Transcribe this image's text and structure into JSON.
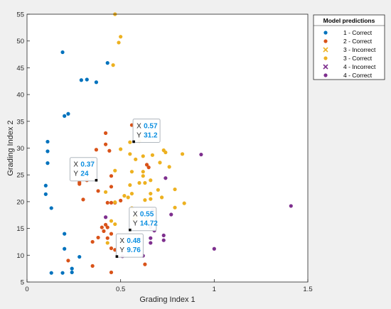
{
  "chart_data": {
    "type": "scatter",
    "xlabel": "Grading Index 1",
    "ylabel": "Grading Index 2",
    "xlim": [
      0,
      1.5
    ],
    "ylim": [
      5,
      55
    ],
    "xticks": [
      0,
      0.5,
      1,
      1.5
    ],
    "xtick_labels": [
      "0",
      "0.5",
      "1",
      "1.5"
    ],
    "yticks": [
      5,
      10,
      15,
      20,
      25,
      30,
      35,
      40,
      45,
      50,
      55
    ],
    "ytick_labels": [
      "5",
      "10",
      "15",
      "20",
      "25",
      "30",
      "35",
      "40",
      "45",
      "50",
      "55"
    ],
    "grid": false,
    "legend_title": "Model predictions",
    "legend_placement": "outside-top-right",
    "series": [
      {
        "name": "1 - Correct",
        "marker": "dot",
        "color": "#0072bd",
        "points": [
          [
            0.19,
            47.9
          ],
          [
            0.29,
            42.7
          ],
          [
            0.32,
            42.8
          ],
          [
            0.37,
            42.3
          ],
          [
            0.43,
            45.9
          ],
          [
            0.2,
            36
          ],
          [
            0.22,
            36.4
          ],
          [
            0.11,
            31.2
          ],
          [
            0.11,
            29.4
          ],
          [
            0.11,
            27.2
          ],
          [
            0.1,
            23
          ],
          [
            0.1,
            21.4
          ],
          [
            0.13,
            18.8
          ],
          [
            0.2,
            14
          ],
          [
            0.2,
            11.2
          ],
          [
            0.28,
            9.7
          ],
          [
            0.24,
            7.5
          ],
          [
            0.24,
            6.8
          ],
          [
            0.13,
            6.7
          ],
          [
            0.19,
            6.7
          ]
        ]
      },
      {
        "name": "2 - Correct",
        "marker": "dot",
        "color": "#d95319",
        "points": [
          [
            0.56,
            34.3
          ],
          [
            0.42,
            32.8
          ],
          [
            0.42,
            30.7
          ],
          [
            0.44,
            29.5
          ],
          [
            0.37,
            29.7
          ],
          [
            0.35,
            27.6
          ],
          [
            0.32,
            24
          ],
          [
            0.28,
            23.6
          ],
          [
            0.28,
            23.3
          ],
          [
            0.45,
            24.8
          ],
          [
            0.45,
            22.8
          ],
          [
            0.38,
            22
          ],
          [
            0.43,
            19.8
          ],
          [
            0.45,
            19.8
          ],
          [
            0.47,
            19.8
          ],
          [
            0.5,
            20.2
          ],
          [
            0.3,
            20.4
          ],
          [
            0.42,
            15.7
          ],
          [
            0.4,
            15.2
          ],
          [
            0.43,
            15.2
          ],
          [
            0.41,
            14.5
          ],
          [
            0.45,
            14
          ],
          [
            0.43,
            13.2
          ],
          [
            0.38,
            13.3
          ],
          [
            0.35,
            12.5
          ],
          [
            0.45,
            11.3
          ],
          [
            0.47,
            11
          ],
          [
            0.22,
            9
          ],
          [
            0.35,
            8
          ],
          [
            0.45,
            6.8
          ],
          [
            0.63,
            8.3
          ],
          [
            0.64,
            26.9
          ],
          [
            0.65,
            26.4
          ]
        ]
      },
      {
        "name": "3 - Incorrect",
        "marker": "x",
        "color": "#edb120",
        "points": []
      },
      {
        "name": "3 - Correct",
        "marker": "dot",
        "color": "#edb120",
        "points": [
          [
            0.47,
            55
          ],
          [
            0.5,
            50.8
          ],
          [
            0.49,
            49.7
          ],
          [
            0.46,
            45.5
          ],
          [
            0.55,
            31.1
          ],
          [
            0.6,
            31.3
          ],
          [
            0.5,
            29.8
          ],
          [
            0.55,
            28.9
          ],
          [
            0.58,
            27.9
          ],
          [
            0.62,
            28.5
          ],
          [
            0.67,
            28.7
          ],
          [
            0.73,
            29.6
          ],
          [
            0.74,
            29.2
          ],
          [
            0.83,
            28.9
          ],
          [
            0.71,
            27.3
          ],
          [
            0.76,
            26.5
          ],
          [
            0.47,
            25.8
          ],
          [
            0.56,
            25.6
          ],
          [
            0.62,
            25.6
          ],
          [
            0.62,
            24.8
          ],
          [
            0.66,
            24
          ],
          [
            0.6,
            23.5
          ],
          [
            0.63,
            23.5
          ],
          [
            0.55,
            23.1
          ],
          [
            0.7,
            22.2
          ],
          [
            0.79,
            22.3
          ],
          [
            0.66,
            21.5
          ],
          [
            0.56,
            21.5
          ],
          [
            0.52,
            21.1
          ],
          [
            0.54,
            20.8
          ],
          [
            0.63,
            20.3
          ],
          [
            0.66,
            20.5
          ],
          [
            0.72,
            20.8
          ],
          [
            0.47,
            19.9
          ],
          [
            0.56,
            18.8
          ],
          [
            0.58,
            17.1
          ],
          [
            0.64,
            16.8
          ],
          [
            0.68,
            18.4
          ],
          [
            0.84,
            19.7
          ],
          [
            0.79,
            18.9
          ],
          [
            0.42,
            21.8
          ],
          [
            0.47,
            15.8
          ],
          [
            0.45,
            16.4
          ],
          [
            0.43,
            12.3
          ],
          [
            0.57,
            16.7
          ]
        ]
      },
      {
        "name": "4 - Incorrect",
        "marker": "x",
        "color": "#7e2f8e",
        "points": []
      },
      {
        "name": "4 - Correct",
        "marker": "dot",
        "color": "#7e2f8e",
        "points": [
          [
            0.93,
            28.8
          ],
          [
            0.74,
            24.4
          ],
          [
            0.67,
            18.4
          ],
          [
            0.77,
            17.6
          ],
          [
            1.41,
            19.2
          ],
          [
            0.42,
            17.1
          ],
          [
            0.66,
            15.2
          ],
          [
            0.68,
            14.6
          ],
          [
            0.73,
            13.7
          ],
          [
            0.73,
            12.8
          ],
          [
            0.66,
            13.2
          ],
          [
            0.66,
            12.3
          ],
          [
            1.0,
            11.2
          ],
          [
            0.62,
            9.9
          ],
          [
            0.51,
            9.8
          ]
        ]
      }
    ],
    "datatips": [
      {
        "x_label": "X",
        "y_label": "Y",
        "x_text": "0.57",
        "y_text": "31.2",
        "x": 0.57,
        "y": 31.2,
        "side": "right"
      },
      {
        "x_label": "X",
        "y_label": "Y",
        "x_text": "0.37",
        "y_text": "24",
        "x": 0.37,
        "y": 24,
        "side": "left"
      },
      {
        "x_label": "X",
        "y_label": "Y",
        "x_text": "0.55",
        "y_text": "14.72",
        "x": 0.55,
        "y": 14.72,
        "side": "right"
      },
      {
        "x_label": "X",
        "y_label": "Y",
        "x_text": "0.48",
        "y_text": "9.76",
        "x": 0.48,
        "y": 9.76,
        "side": "right"
      }
    ]
  }
}
